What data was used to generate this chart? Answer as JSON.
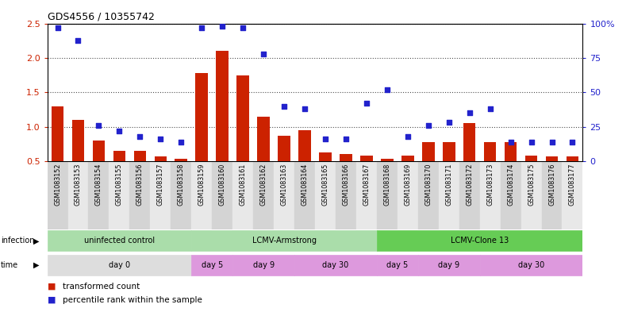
{
  "title": "GDS4556 / 10355742",
  "samples": [
    "GSM1083152",
    "GSM1083153",
    "GSM1083154",
    "GSM1083155",
    "GSM1083156",
    "GSM1083157",
    "GSM1083158",
    "GSM1083159",
    "GSM1083160",
    "GSM1083161",
    "GSM1083162",
    "GSM1083163",
    "GSM1083164",
    "GSM1083165",
    "GSM1083166",
    "GSM1083167",
    "GSM1083168",
    "GSM1083169",
    "GSM1083170",
    "GSM1083171",
    "GSM1083172",
    "GSM1083173",
    "GSM1083174",
    "GSM1083175",
    "GSM1083176",
    "GSM1083177"
  ],
  "transformed_count": [
    1.3,
    1.1,
    0.8,
    0.65,
    0.65,
    0.57,
    0.53,
    1.78,
    2.1,
    1.75,
    1.15,
    0.87,
    0.95,
    0.62,
    0.6,
    0.58,
    0.53,
    0.58,
    0.78,
    0.78,
    1.05,
    0.78,
    0.78,
    0.58,
    0.57,
    0.57
  ],
  "percentile_rank": [
    97,
    88,
    26,
    22,
    18,
    16,
    14,
    97,
    98,
    97,
    78,
    40,
    38,
    16,
    16,
    42,
    52,
    18,
    26,
    28,
    35,
    38,
    14,
    14,
    14,
    14
  ],
  "bar_color": "#cc2200",
  "dot_color": "#2222cc",
  "ylim_left": [
    0.5,
    2.5
  ],
  "ylim_right": [
    0,
    100
  ],
  "yticks_left": [
    0.5,
    1.0,
    1.5,
    2.0,
    2.5
  ],
  "yticks_right": [
    0,
    25,
    50,
    75,
    100
  ],
  "infection_regions": [
    {
      "label": "uninfected control",
      "xstart": -0.5,
      "xend": 6.5,
      "color": "#aaddaa"
    },
    {
      "label": "LCMV-Armstrong",
      "xstart": 6.5,
      "xend": 15.5,
      "color": "#aaddaa"
    },
    {
      "label": "LCMV-Clone 13",
      "xstart": 15.5,
      "xend": 25.5,
      "color": "#66cc55"
    }
  ],
  "time_regions": [
    {
      "label": "day 0",
      "xstart": -0.5,
      "xend": 6.5,
      "color": "#dddddd"
    },
    {
      "label": "day 5",
      "xstart": 6.5,
      "xend": 8.5,
      "color": "#dd99dd"
    },
    {
      "label": "day 9",
      "xstart": 8.5,
      "xend": 11.5,
      "color": "#dd99dd"
    },
    {
      "label": "day 30",
      "xstart": 11.5,
      "xend": 15.5,
      "color": "#dd99dd"
    },
    {
      "label": "day 5",
      "xstart": 15.5,
      "xend": 17.5,
      "color": "#dd99dd"
    },
    {
      "label": "day 9",
      "xstart": 17.5,
      "xend": 20.5,
      "color": "#dd99dd"
    },
    {
      "label": "day 30",
      "xstart": 20.5,
      "xend": 25.5,
      "color": "#dd99dd"
    }
  ],
  "right_ytick_labels": [
    "0",
    "25",
    "50",
    "75",
    "100%"
  ],
  "col_stripe_even": "#d4d4d4",
  "col_stripe_odd": "#e8e8e8"
}
